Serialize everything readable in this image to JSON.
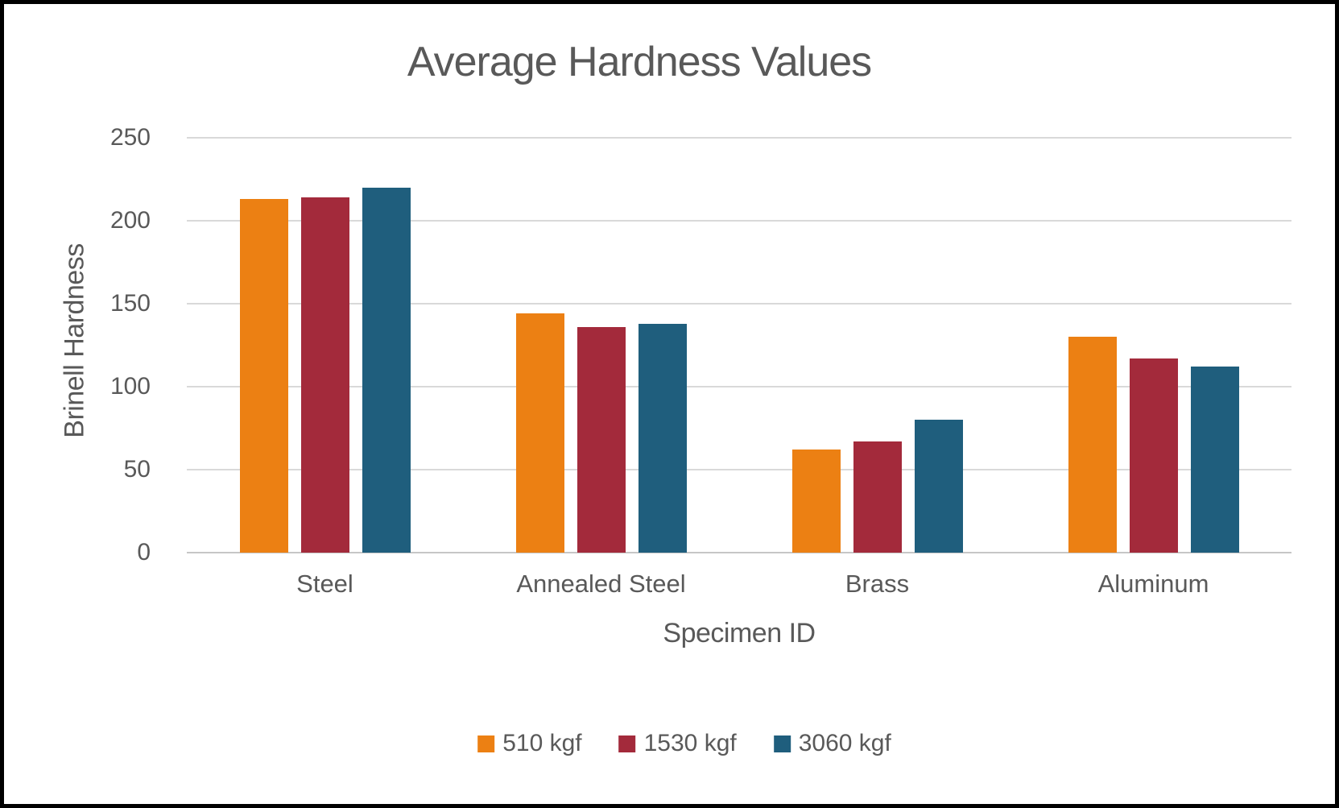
{
  "chart_data": {
    "type": "bar",
    "title": "Average Hardness Values",
    "xlabel": "Specimen ID",
    "ylabel": "Brinell Hardness",
    "ylim": [
      0,
      250
    ],
    "yticks": [
      0,
      50,
      100,
      150,
      200,
      250
    ],
    "grid": true,
    "legend_position": "bottom",
    "categories": [
      "Steel",
      "Annealed Steel",
      "Brass",
      "Aluminum"
    ],
    "series": [
      {
        "name": "510 kgf",
        "color": "#EC8013",
        "values": [
          213,
          144,
          62,
          130
        ]
      },
      {
        "name": "1530 kgf",
        "color": "#A32A3B",
        "values": [
          214,
          136,
          67,
          117
        ]
      },
      {
        "name": "3060 kgf",
        "color": "#1F5E7D",
        "values": [
          220,
          138,
          80,
          112
        ]
      }
    ]
  },
  "colors": {
    "text": "#595959",
    "gridline": "#D9D9D9",
    "axis_line": "#C6C6C6",
    "background": "#FFFFFF",
    "border": "#000000"
  }
}
